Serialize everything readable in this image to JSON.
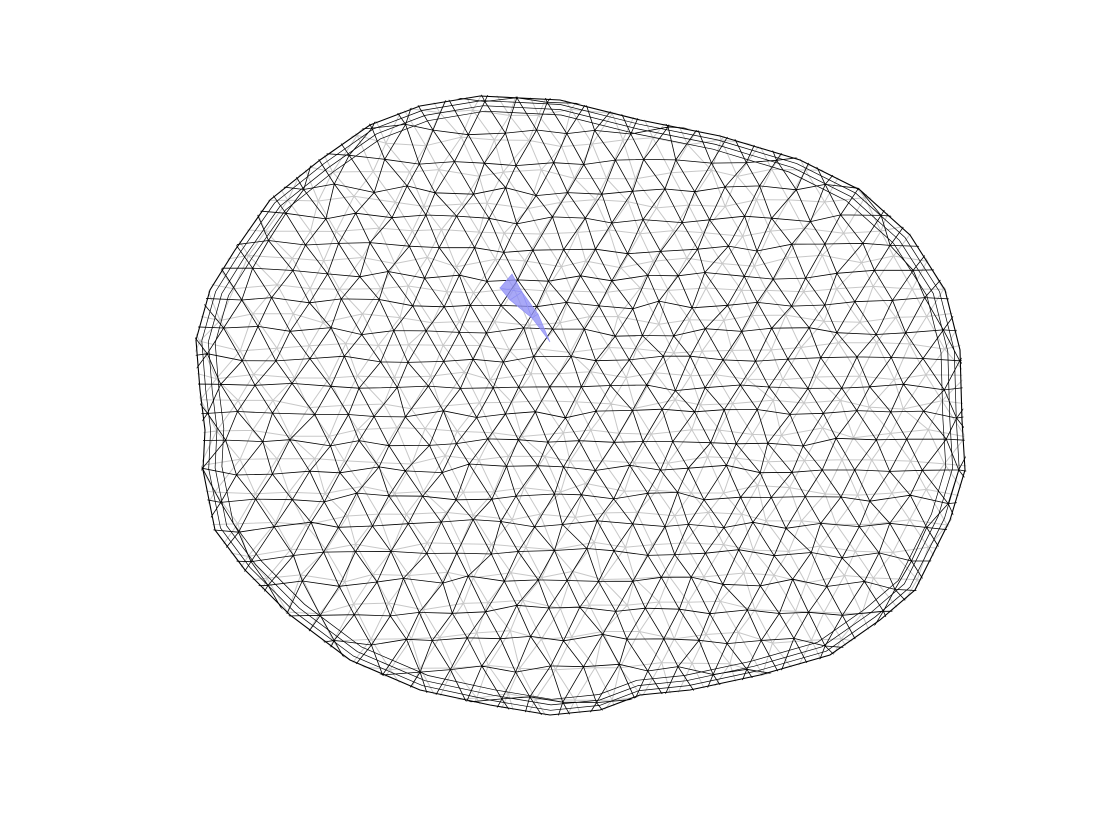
{
  "figure": {
    "background_color": "#ffffff",
    "front_wire_color": "#000000",
    "back_wire_color": "#c8c8c8",
    "highlight_color": "#8f8ff5",
    "view": "3d-triangulated-surface",
    "grid": false,
    "axes_visible": false
  }
}
